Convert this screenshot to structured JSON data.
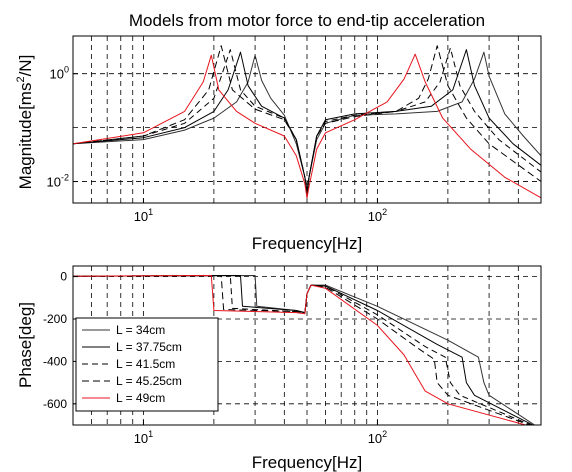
{
  "chart_data": [
    {
      "type": "line",
      "title": "Models from motor force to end-tip acceleration",
      "xlabel": "Frequency[Hz]",
      "ylabel_prefix": "Magnitude[ms",
      "ylabel_sup": "2",
      "ylabel_suffix": "/N]",
      "xscale": "log",
      "yscale": "log",
      "xlim": [
        5,
        500
      ],
      "ylim": [
        0.004,
        5
      ],
      "x_ticks": [
        {
          "value": 10,
          "base": "10",
          "exp": "1"
        },
        {
          "value": 100,
          "base": "10",
          "exp": "2"
        }
      ],
      "y_ticks": [
        {
          "value": 0.01,
          "base": "10",
          "exp": "-2"
        },
        {
          "value": 1,
          "base": "10",
          "exp": "0"
        }
      ],
      "grid": true,
      "series": [
        {
          "color": "#333333",
          "dash": "solid",
          "f1": 30,
          "f2": 285,
          "points": [
            [
              5,
              0.05
            ],
            [
              10,
              0.06
            ],
            [
              15,
              0.09
            ],
            [
              20,
              0.15
            ],
            [
              25,
              0.3
            ],
            [
              28,
              0.7
            ],
            [
              30,
              2.2
            ],
            [
              32,
              0.75
            ],
            [
              35,
              0.35
            ],
            [
              40,
              0.17
            ],
            [
              45,
              0.05
            ],
            [
              49,
              0.012
            ],
            [
              50,
              0.007
            ],
            [
              51,
              0.012
            ],
            [
              55,
              0.06
            ],
            [
              60,
              0.12
            ],
            [
              80,
              0.17
            ],
            [
              120,
              0.18
            ],
            [
              180,
              0.2
            ],
            [
              230,
              0.3
            ],
            [
              260,
              0.8
            ],
            [
              285,
              2.5
            ],
            [
              300,
              0.9
            ],
            [
              350,
              0.18
            ],
            [
              420,
              0.07
            ],
            [
              500,
              0.03
            ]
          ]
        },
        {
          "color": "#000000",
          "dash": "solid",
          "f1": 26,
          "f2": 240,
          "points": [
            [
              5,
              0.05
            ],
            [
              10,
              0.065
            ],
            [
              15,
              0.1
            ],
            [
              20,
              0.2
            ],
            [
              23,
              0.5
            ],
            [
              26,
              2.5
            ],
            [
              28,
              0.6
            ],
            [
              32,
              0.25
            ],
            [
              40,
              0.15
            ],
            [
              45,
              0.06
            ],
            [
              49,
              0.012
            ],
            [
              50,
              0.006
            ],
            [
              51,
              0.012
            ],
            [
              55,
              0.07
            ],
            [
              60,
              0.14
            ],
            [
              80,
              0.18
            ],
            [
              120,
              0.2
            ],
            [
              170,
              0.25
            ],
            [
              210,
              0.5
            ],
            [
              240,
              2.8
            ],
            [
              260,
              0.6
            ],
            [
              300,
              0.15
            ],
            [
              380,
              0.05
            ],
            [
              500,
              0.02
            ]
          ]
        },
        {
          "color": "#000000",
          "dash": "6,4",
          "f1": 23.5,
          "f2": 205,
          "points": [
            [
              5,
              0.05
            ],
            [
              10,
              0.07
            ],
            [
              15,
              0.12
            ],
            [
              20,
              0.35
            ],
            [
              23.5,
              2.8
            ],
            [
              26,
              0.5
            ],
            [
              30,
              0.25
            ],
            [
              40,
              0.15
            ],
            [
              45,
              0.06
            ],
            [
              49,
              0.012
            ],
            [
              50,
              0.006
            ],
            [
              51,
              0.012
            ],
            [
              55,
              0.07
            ],
            [
              60,
              0.13
            ],
            [
              80,
              0.17
            ],
            [
              120,
              0.2
            ],
            [
              160,
              0.3
            ],
            [
              185,
              0.7
            ],
            [
              205,
              3.0
            ],
            [
              225,
              0.6
            ],
            [
              260,
              0.2
            ],
            [
              330,
              0.06
            ],
            [
              500,
              0.015
            ]
          ]
        },
        {
          "color": "#000000",
          "dash": "7,4",
          "f1": 21.5,
          "f2": 180,
          "points": [
            [
              5,
              0.05
            ],
            [
              10,
              0.07
            ],
            [
              15,
              0.14
            ],
            [
              19,
              0.5
            ],
            [
              21.5,
              3.3
            ],
            [
              24,
              0.5
            ],
            [
              30,
              0.22
            ],
            [
              40,
              0.14
            ],
            [
              45,
              0.06
            ],
            [
              49,
              0.012
            ],
            [
              50,
              0.005
            ],
            [
              51,
              0.012
            ],
            [
              55,
              0.07
            ],
            [
              60,
              0.12
            ],
            [
              80,
              0.16
            ],
            [
              120,
              0.2
            ],
            [
              150,
              0.35
            ],
            [
              165,
              0.8
            ],
            [
              180,
              3.3
            ],
            [
              200,
              0.6
            ],
            [
              240,
              0.15
            ],
            [
              300,
              0.05
            ],
            [
              500,
              0.01
            ]
          ]
        },
        {
          "color": "#e8141c",
          "dash": "solid",
          "f1": 19.5,
          "f2": 145,
          "points": [
            [
              5,
              0.05
            ],
            [
              10,
              0.08
            ],
            [
              15,
              0.2
            ],
            [
              18,
              0.7
            ],
            [
              19.5,
              2.2
            ],
            [
              21,
              0.5
            ],
            [
              25,
              0.2
            ],
            [
              30,
              0.12
            ],
            [
              40,
              0.07
            ],
            [
              45,
              0.03
            ],
            [
              49,
              0.009
            ],
            [
              50,
              0.005
            ],
            [
              51,
              0.008
            ],
            [
              55,
              0.04
            ],
            [
              60,
              0.08
            ],
            [
              80,
              0.14
            ],
            [
              110,
              0.3
            ],
            [
              130,
              0.8
            ],
            [
              145,
              2.3
            ],
            [
              160,
              0.7
            ],
            [
              190,
              0.15
            ],
            [
              250,
              0.04
            ],
            [
              350,
              0.012
            ],
            [
              500,
              0.005
            ]
          ]
        }
      ]
    },
    {
      "type": "line",
      "xlabel": "Frequency[Hz]",
      "ylabel": "Phase[deg]",
      "xscale": "log",
      "xlim": [
        5,
        500
      ],
      "ylim": [
        -700,
        50
      ],
      "y_ticks": [
        0,
        -200,
        -400,
        -600
      ],
      "x_ticks": [
        {
          "value": 10,
          "base": "10",
          "exp": "1"
        },
        {
          "value": 100,
          "base": "10",
          "exp": "2"
        }
      ],
      "grid": true,
      "legend": {
        "placement": "bottom-left",
        "entries": [
          "L = 34cm",
          "L = 37.75cm",
          "L = 41.5cm",
          "L = 45.25cm",
          "L = 49cm"
        ]
      },
      "series": [
        {
          "color": "#333333",
          "dash": "solid",
          "points": [
            [
              5,
              2
            ],
            [
              30,
              5
            ],
            [
              30.5,
              -140
            ],
            [
              45,
              -160
            ],
            [
              49,
              -170
            ],
            [
              50,
              -80
            ],
            [
              52,
              -40
            ],
            [
              60,
              -40
            ],
            [
              100,
              -140
            ],
            [
              200,
              -300
            ],
            [
              270,
              -380
            ],
            [
              285,
              -500
            ],
            [
              300,
              -560
            ],
            [
              500,
              -720
            ]
          ]
        },
        {
          "color": "#000000",
          "dash": "solid",
          "points": [
            [
              5,
              2
            ],
            [
              26,
              5
            ],
            [
              26.5,
              -140
            ],
            [
              45,
              -160
            ],
            [
              49,
              -170
            ],
            [
              50,
              -80
            ],
            [
              52,
              -40
            ],
            [
              60,
              -45
            ],
            [
              100,
              -160
            ],
            [
              180,
              -320
            ],
            [
              230,
              -380
            ],
            [
              240,
              -500
            ],
            [
              260,
              -560
            ],
            [
              500,
              -720
            ]
          ]
        },
        {
          "color": "#000000",
          "dash": "6,4",
          "points": [
            [
              5,
              2
            ],
            [
              23.5,
              5
            ],
            [
              24,
              -150
            ],
            [
              45,
              -165
            ],
            [
              49,
              -170
            ],
            [
              50,
              -80
            ],
            [
              52,
              -40
            ],
            [
              60,
              -45
            ],
            [
              100,
              -180
            ],
            [
              160,
              -330
            ],
            [
              195,
              -380
            ],
            [
              205,
              -500
            ],
            [
              225,
              -560
            ],
            [
              500,
              -720
            ]
          ]
        },
        {
          "color": "#000000",
          "dash": "7,4",
          "points": [
            [
              5,
              2
            ],
            [
              21.5,
              5
            ],
            [
              22,
              -155
            ],
            [
              45,
              -165
            ],
            [
              49,
              -170
            ],
            [
              50,
              -80
            ],
            [
              52,
              -40
            ],
            [
              60,
              -50
            ],
            [
              100,
              -200
            ],
            [
              150,
              -340
            ],
            [
              175,
              -390
            ],
            [
              180,
              -500
            ],
            [
              200,
              -560
            ],
            [
              500,
              -720
            ]
          ]
        },
        {
          "color": "#e8141c",
          "dash": "solid",
          "points": [
            [
              5,
              2
            ],
            [
              19.5,
              5
            ],
            [
              20,
              -160
            ],
            [
              45,
              -170
            ],
            [
              49,
              -175
            ],
            [
              50,
              -80
            ],
            [
              52,
              -40
            ],
            [
              60,
              -55
            ],
            [
              100,
              -230
            ],
            [
              130,
              -370
            ],
            [
              145,
              -460
            ],
            [
              160,
              -540
            ],
            [
              200,
              -600
            ],
            [
              500,
              -720
            ]
          ]
        }
      ]
    }
  ]
}
